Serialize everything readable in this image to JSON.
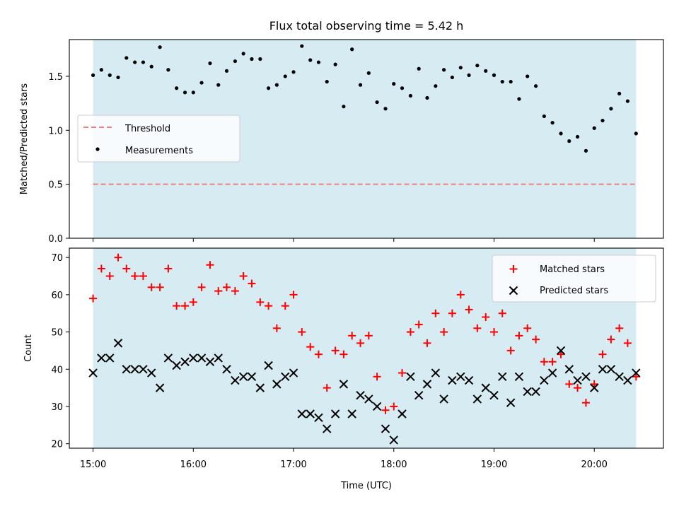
{
  "chart_data": [
    {
      "type": "scatter",
      "title": "Flux total observing time = 5.42 h",
      "xlabel": "",
      "ylabel": "Matched/Predicted stars",
      "ylim": [
        0,
        1.84
      ],
      "yticks": [
        0.0,
        0.5,
        1.0,
        1.5
      ],
      "yticklabels": [
        "0.0",
        "0.5",
        "1.0",
        "1.5"
      ],
      "threshold": 0.5,
      "legend_position": "center-left",
      "legend": [
        {
          "label": "Threshold",
          "marker": "dashed-line",
          "color": "#f08080"
        },
        {
          "label": "Measurements",
          "marker": "dot",
          "color": "#000000"
        }
      ],
      "series": [
        {
          "name": "Measurements",
          "x": [
            15.0,
            15.083,
            15.167,
            15.25,
            15.333,
            15.417,
            15.5,
            15.583,
            15.667,
            15.75,
            15.833,
            15.917,
            16.0,
            16.083,
            16.167,
            16.25,
            16.333,
            16.417,
            16.5,
            16.583,
            16.667,
            16.75,
            16.833,
            16.917,
            17.0,
            17.083,
            17.167,
            17.25,
            17.333,
            17.417,
            17.5,
            17.583,
            17.667,
            17.75,
            17.833,
            17.917,
            18.0,
            18.083,
            18.167,
            18.25,
            18.333,
            18.417,
            18.5,
            18.583,
            18.667,
            18.75,
            18.833,
            18.917,
            19.0,
            19.083,
            19.167,
            19.25,
            19.333,
            19.417,
            19.5,
            19.583,
            19.667,
            19.75,
            19.833,
            19.917,
            20.0,
            20.083,
            20.167,
            20.25,
            20.333,
            20.417
          ],
          "y": [
            1.51,
            1.56,
            1.51,
            1.49,
            1.67,
            1.63,
            1.63,
            1.59,
            1.77,
            1.56,
            1.39,
            1.35,
            1.35,
            1.44,
            1.62,
            1.42,
            1.55,
            1.64,
            1.71,
            1.66,
            1.66,
            1.39,
            1.42,
            1.5,
            1.54,
            1.78,
            1.65,
            1.63,
            1.45,
            1.61,
            1.22,
            1.75,
            1.42,
            1.53,
            1.26,
            1.2,
            1.43,
            1.39,
            1.32,
            1.57,
            1.3,
            1.41,
            1.56,
            1.49,
            1.58,
            1.51,
            1.6,
            1.55,
            1.51,
            1.45,
            1.45,
            1.29,
            1.5,
            1.41,
            1.13,
            1.07,
            0.97,
            0.9,
            0.94,
            0.81,
            1.02,
            1.09,
            1.2,
            1.34,
            1.27,
            0.97
          ]
        }
      ],
      "shaded_x_range": [
        15.0,
        20.417
      ]
    },
    {
      "type": "scatter",
      "title": "",
      "xlabel": "Time (UTC)",
      "ylabel": "Count",
      "xlim": [
        14.763,
        20.69
      ],
      "ylim": [
        18.8,
        72.5
      ],
      "xticks": [
        15,
        16,
        17,
        18,
        19,
        20
      ],
      "xticklabels": [
        "15:00",
        "16:00",
        "17:00",
        "18:00",
        "19:00",
        "20:00"
      ],
      "yticks": [
        20,
        30,
        40,
        50,
        60,
        70
      ],
      "yticklabels": [
        "20",
        "30",
        "40",
        "50",
        "60",
        "70"
      ],
      "legend_position": "top-right",
      "series": [
        {
          "name": "Matched stars",
          "marker": "plus",
          "color": "#ff0000",
          "y": [
            59,
            67,
            65,
            70,
            67,
            65,
            65,
            62,
            62,
            67,
            57,
            57,
            58,
            62,
            68,
            61,
            62,
            61,
            65,
            63,
            58,
            57,
            51,
            57,
            60,
            50,
            46,
            44,
            35,
            45,
            44,
            49,
            47,
            49,
            38,
            29,
            30,
            39,
            50,
            52,
            47,
            55,
            50,
            55,
            60,
            56,
            51,
            54,
            50,
            55,
            45,
            49,
            51,
            48,
            42,
            42,
            44,
            36,
            35,
            31,
            36,
            44,
            48,
            51,
            47,
            38
          ]
        },
        {
          "name": "Predicted stars",
          "marker": "x",
          "color": "#000000",
          "y": [
            39,
            43,
            43,
            47,
            40,
            40,
            40,
            39,
            35,
            43,
            41,
            42,
            43,
            43,
            42,
            43,
            40,
            37,
            38,
            38,
            35,
            41,
            36,
            38,
            39,
            28,
            28,
            27,
            24,
            28,
            36,
            28,
            33,
            32,
            30,
            24,
            21,
            28,
            38,
            33,
            36,
            39,
            32,
            37,
            38,
            37,
            32,
            35,
            33,
            38,
            31,
            38,
            34,
            34,
            37,
            39,
            45,
            40,
            37,
            38,
            35,
            40,
            40,
            38,
            37,
            39
          ]
        }
      ],
      "shaded_x_range": [
        15.0,
        20.417
      ]
    }
  ]
}
